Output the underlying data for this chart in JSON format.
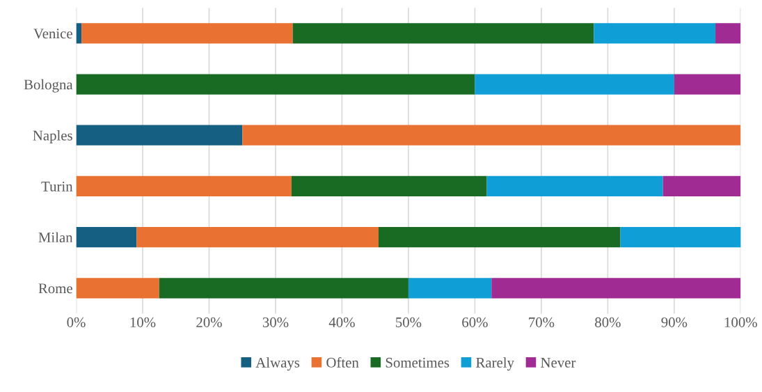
{
  "chart_data": {
    "type": "bar",
    "orientation": "horizontal",
    "stacked": true,
    "categories": [
      "Venice",
      "Bologna",
      "Naples",
      "Turin",
      "Milan",
      "Rome"
    ],
    "series": [
      {
        "name": "Always",
        "color": "#156082",
        "values": [
          0.8,
          0,
          25,
          0,
          9.1,
          0
        ]
      },
      {
        "name": "Often",
        "color": "#e97132",
        "values": [
          31.8,
          0,
          75,
          32.4,
          36.4,
          12.5
        ]
      },
      {
        "name": "Sometimes",
        "color": "#196b24",
        "values": [
          45.3,
          60,
          0,
          29.4,
          36.4,
          37.5
        ]
      },
      {
        "name": "Rarely",
        "color": "#0f9ed5",
        "values": [
          18.3,
          30,
          0,
          26.5,
          18.2,
          12.5
        ]
      },
      {
        "name": "Never",
        "color": "#a02b93",
        "values": [
          3.8,
          10,
          0,
          11.7,
          0,
          37.5
        ]
      }
    ],
    "xlim": [
      0,
      100
    ],
    "xticks": [
      {
        "value": 0,
        "label": "0%"
      },
      {
        "value": 10,
        "label": "10%"
      },
      {
        "value": 20,
        "label": "20%"
      },
      {
        "value": 30,
        "label": "30%"
      },
      {
        "value": 40,
        "label": "40%"
      },
      {
        "value": 50,
        "label": "50%"
      },
      {
        "value": 60,
        "label": "60%"
      },
      {
        "value": 70,
        "label": "70%"
      },
      {
        "value": 80,
        "label": "80%"
      },
      {
        "value": 90,
        "label": "90%"
      },
      {
        "value": 100,
        "label": "100%"
      }
    ],
    "grid": "x",
    "legend": "bottom"
  }
}
